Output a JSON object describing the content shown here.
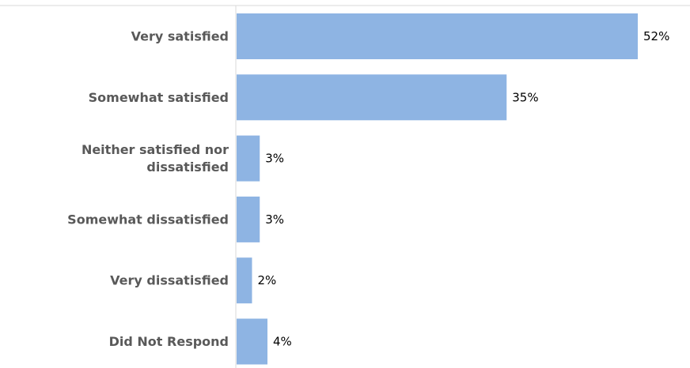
{
  "chart_data": {
    "type": "bar",
    "orientation": "horizontal",
    "categories": [
      [
        "Very satisfied"
      ],
      [
        "Somewhat satisfied"
      ],
      [
        "Neither satisfied nor",
        "dissatisfied"
      ],
      [
        "Somewhat dissatisfied"
      ],
      [
        "Very dissatisfied"
      ],
      [
        "Did Not Respond"
      ]
    ],
    "values": [
      52,
      35,
      3,
      3,
      2,
      4
    ],
    "value_labels": [
      "52%",
      "35%",
      "3%",
      "3%",
      "2%",
      "4%"
    ],
    "unit": "%",
    "xlim": [
      0,
      60
    ],
    "grid": false,
    "legend": "none",
    "bar_color": "#8EB4E3",
    "axis_color": "#D9D9D9"
  }
}
